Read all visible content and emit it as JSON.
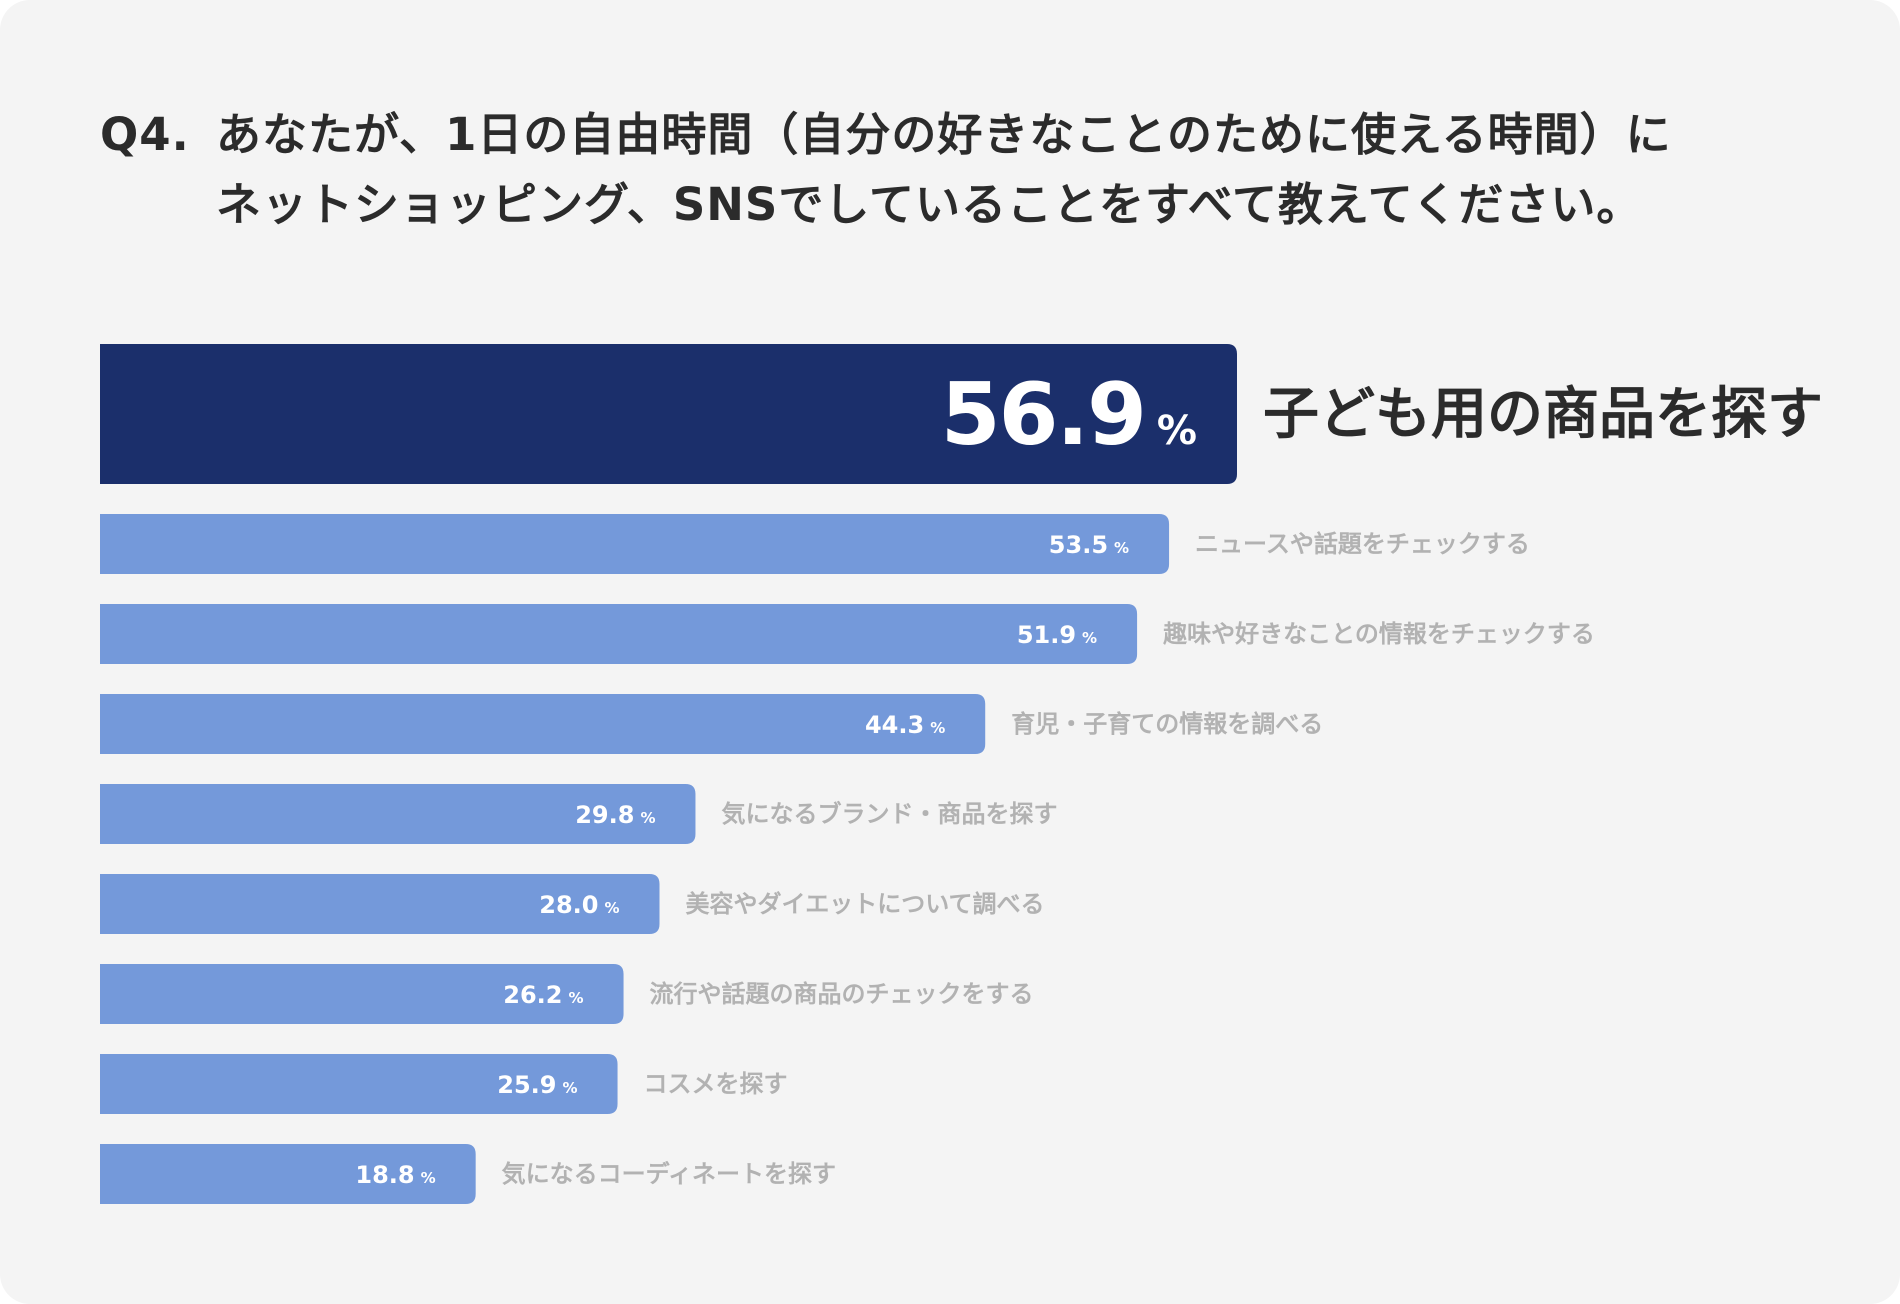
{
  "title": {
    "question_number": "Q4.",
    "line1": "あなたが、1日の自由時間（自分の好きなことのために使える時間）に",
    "line2": "ネットショッピング、SNSでしていることをすべて教えてください。"
  },
  "colors": {
    "background": "#f4f4f4",
    "top_bar": "#1b2f6b",
    "bar": "#7499da",
    "top_label": "#2b2b2b",
    "label": "#b2b2b2",
    "value_text": "#ffffff"
  },
  "chart_data": {
    "type": "bar",
    "orientation": "horizontal",
    "unit": "%",
    "title": "Q4. あなたが、1日の自由時間（自分の好きなことのために使える時間）にネットショッピング、SNSでしていることをすべて教えてください。",
    "categories": [
      "子ども用の商品を探す",
      "ニュースや話題をチェックする",
      "趣味や好きなことの情報をチェックする",
      "育児・子育ての情報を調べる",
      "気になるブランド・商品を探す",
      "美容やダイエットについて調べる",
      "流行や話題の商品のチェックをする",
      "コスメを探す",
      "気になるコーディネートを探す"
    ],
    "values": [
      56.9,
      53.5,
      51.9,
      44.3,
      29.8,
      28.0,
      26.2,
      25.9,
      18.8
    ],
    "value_labels": [
      "56.9",
      "53.5",
      "51.9",
      "44.3",
      "29.8",
      "28.0",
      "26.2",
      "25.9",
      "18.8"
    ],
    "highlight_index": 0,
    "xlim": [
      0,
      100
    ],
    "grid": false,
    "legend": "none"
  }
}
